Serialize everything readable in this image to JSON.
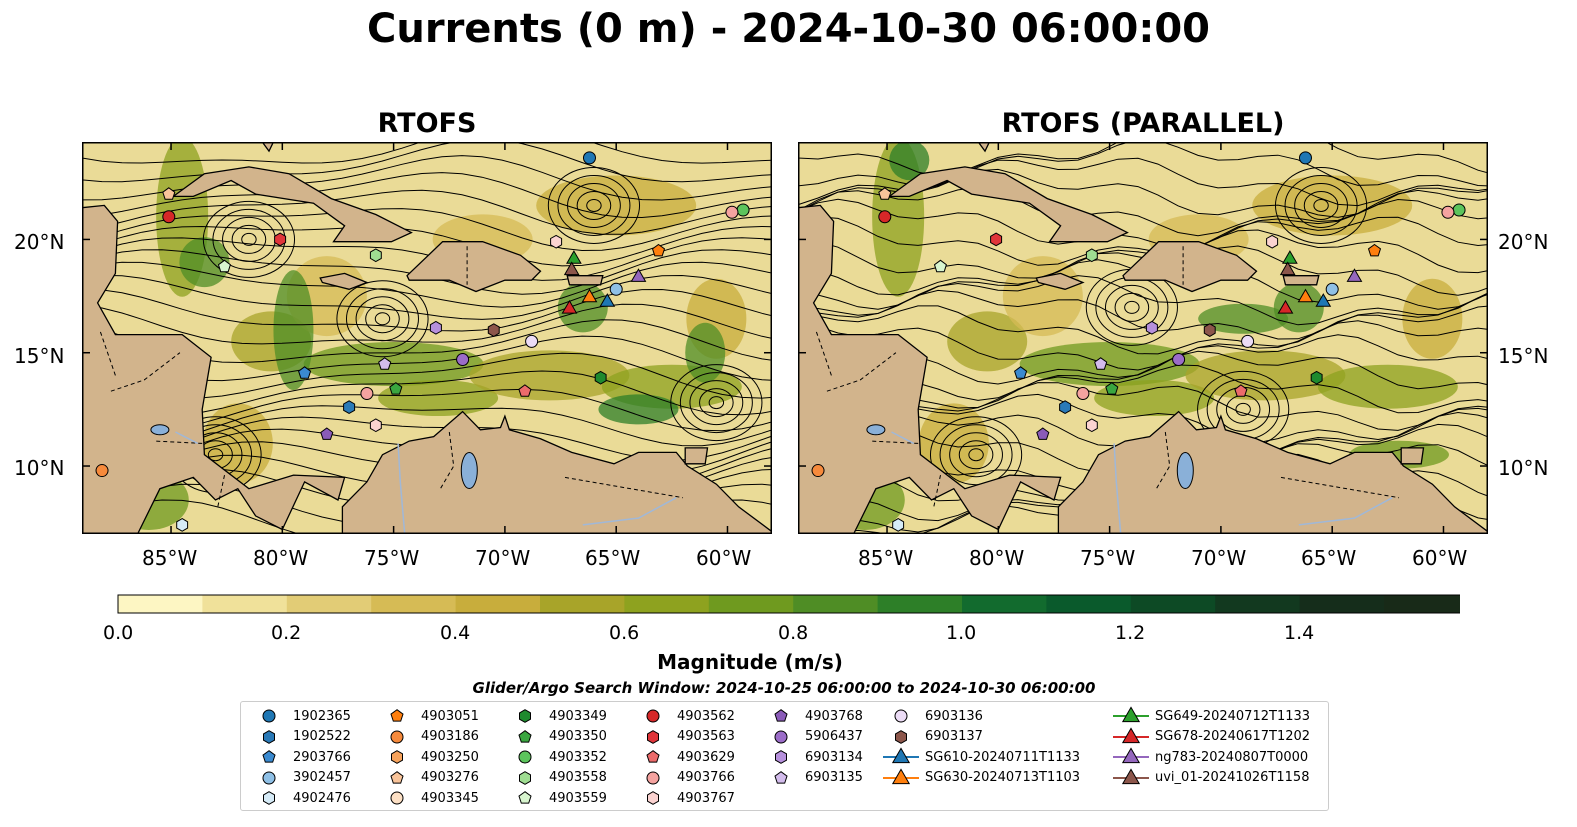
{
  "suptitle": "Currents (0 m) - 2024-10-30 06:00:00",
  "panels": [
    {
      "title": "RTOFS"
    },
    {
      "title": "RTOFS (PARALLEL)"
    }
  ],
  "map": {
    "lon_range": [
      -89,
      -58
    ],
    "lat_range": [
      7,
      24.3
    ],
    "land_color": "#d2b48c",
    "lake_color": "#8ab0d8",
    "lat_ticks": [
      "10°N",
      "15°N",
      "20°N"
    ],
    "lon_ticks": [
      "85°W",
      "80°W",
      "75°W",
      "70°W",
      "65°W",
      "60°W"
    ]
  },
  "colorbar": {
    "label": "Magnitude (m/s)",
    "ticks": [
      "0.0",
      "0.2",
      "0.4",
      "0.6",
      "0.8",
      "1.0",
      "1.2",
      "1.4"
    ],
    "colors": [
      "#fdf6c3",
      "#f0e19a",
      "#e2cc76",
      "#d6bb55",
      "#c8ad3c",
      "#a8a429",
      "#8ea21f",
      "#6f9a1f",
      "#4f8d25",
      "#2d7f28",
      "#126b2e",
      "#0a5a2c",
      "#0d4a25",
      "#12391f",
      "#152d1b",
      "#182a18"
    ]
  },
  "window_text": "Glider/Argo Search Window: 2024-10-25 06:00:00 to 2024-10-30 06:00:00",
  "legend": [
    {
      "label": "1902365",
      "marker": "circle",
      "color": "#1f77b4"
    },
    {
      "label": "1902522",
      "marker": "hexagon",
      "color": "#2a7ab8"
    },
    {
      "label": "2903766",
      "marker": "pentagon",
      "color": "#3a8ad0"
    },
    {
      "label": "3902457",
      "marker": "circle",
      "color": "#8fc0e6"
    },
    {
      "label": "4902476",
      "marker": "hexagon",
      "color": "#d6ebf7"
    },
    {
      "label": "4903051",
      "marker": "pentagon",
      "color": "#ff7f0e"
    },
    {
      "label": "4903186",
      "marker": "circle",
      "color": "#f68a3c"
    },
    {
      "label": "4903250",
      "marker": "hexagon",
      "color": "#f7a35c"
    },
    {
      "label": "4903276",
      "marker": "pentagon",
      "color": "#f9c49a"
    },
    {
      "label": "4903345",
      "marker": "circle",
      "color": "#fde0c5"
    },
    {
      "label": "4903349",
      "marker": "hexagon",
      "color": "#1e8a2e"
    },
    {
      "label": "4903350",
      "marker": "pentagon",
      "color": "#3aa640"
    },
    {
      "label": "4903352",
      "marker": "circle",
      "color": "#5cc45c"
    },
    {
      "label": "4903558",
      "marker": "hexagon",
      "color": "#9fdd92"
    },
    {
      "label": "4903559",
      "marker": "pentagon",
      "color": "#d8f5cf"
    },
    {
      "label": "4903562",
      "marker": "circle",
      "color": "#d62728"
    },
    {
      "label": "4903563",
      "marker": "hexagon",
      "color": "#e0353a"
    },
    {
      "label": "4903629",
      "marker": "pentagon",
      "color": "#ec6b6b"
    },
    {
      "label": "4903766",
      "marker": "circle",
      "color": "#f5a3a0"
    },
    {
      "label": "4903767",
      "marker": "hexagon",
      "color": "#fbd3d1"
    },
    {
      "label": "4903768",
      "marker": "pentagon",
      "color": "#8a5bb8"
    },
    {
      "label": "5906437",
      "marker": "circle",
      "color": "#9b6cc8"
    },
    {
      "label": "6903134",
      "marker": "hexagon",
      "color": "#b690dc"
    },
    {
      "label": "6903135",
      "marker": "pentagon",
      "color": "#d3bcec"
    },
    {
      "label": "6903136",
      "marker": "circle",
      "color": "#ecdcf6"
    },
    {
      "label": "6903137",
      "marker": "hexagon",
      "color": "#8c564b"
    },
    {
      "label": "SG610-20240711T1133",
      "marker": "triangle",
      "color": "#1f77b4"
    },
    {
      "label": "SG630-20240713T1103",
      "marker": "triangle",
      "color": "#ff7f0e"
    },
    {
      "label": "SG649-20240712T1133",
      "marker": "triangle",
      "color": "#2ca02c"
    },
    {
      "label": "SG678-20240617T1202",
      "marker": "triangle",
      "color": "#d62728"
    },
    {
      "label": "ng783-20240807T0000",
      "marker": "triangle",
      "color": "#9467bd"
    },
    {
      "label": "uvi_01-20241026T1158",
      "marker": "triangle",
      "color": "#8c564b"
    }
  ],
  "markers": [
    {
      "label": "1902365",
      "lon": -66.2,
      "lat": 23.6
    },
    {
      "label": "4903186",
      "lon": -88.1,
      "lat": 9.8
    },
    {
      "label": "4902476",
      "lon": -84.5,
      "lat": 7.4
    },
    {
      "label": "4903276",
      "lon": -85.1,
      "lat": 22.0
    },
    {
      "label": "4903562",
      "lon": -85.1,
      "lat": 21.0
    },
    {
      "label": "4903563",
      "lon": -80.1,
      "lat": 20.0
    },
    {
      "label": "4903559",
      "lon": -82.6,
      "lat": 18.8
    },
    {
      "label": "4903352",
      "lon": -59.3,
      "lat": 21.3
    },
    {
      "label": "4903766",
      "lon": -59.8,
      "lat": 21.2
    },
    {
      "label": "4903051",
      "lon": -63.1,
      "lat": 19.5
    },
    {
      "label": "4903767",
      "lon": -67.7,
      "lat": 19.9
    },
    {
      "label": "4903558",
      "lon": -75.8,
      "lat": 19.3
    },
    {
      "label": "3902457",
      "lon": -65.0,
      "lat": 17.8
    },
    {
      "label": "6903134",
      "lon": -73.1,
      "lat": 16.1
    },
    {
      "label": "6903137",
      "lon": -70.5,
      "lat": 16.0
    },
    {
      "label": "6903136",
      "lon": -68.8,
      "lat": 15.5
    },
    {
      "label": "5906437",
      "lon": -71.9,
      "lat": 14.7
    },
    {
      "label": "6903135",
      "lon": -75.4,
      "lat": 14.5
    },
    {
      "label": "2903766",
      "lon": -79.0,
      "lat": 14.1
    },
    {
      "label": "4903350",
      "lon": -74.9,
      "lat": 13.4
    },
    {
      "label": "4903766",
      "lon": -76.2,
      "lat": 13.2
    },
    {
      "label": "4903629",
      "lon": -69.1,
      "lat": 13.3
    },
    {
      "label": "4903349",
      "lon": -65.7,
      "lat": 13.9
    },
    {
      "label": "1902522",
      "lon": -77.0,
      "lat": 12.6
    },
    {
      "label": "4903767",
      "lon": -75.8,
      "lat": 11.8
    },
    {
      "label": "4903768",
      "lon": -78.0,
      "lat": 11.4
    },
    {
      "label": "SG649-20240712T1133",
      "lon": -66.9,
      "lat": 19.2
    },
    {
      "label": "uvi_01-20241026T1158",
      "lon": -67.0,
      "lat": 18.7
    },
    {
      "label": "ng783-20240807T0000",
      "lon": -64.0,
      "lat": 18.4
    },
    {
      "label": "SG630-20240713T1103",
      "lon": -66.2,
      "lat": 17.5
    },
    {
      "label": "SG610-20240711T1133",
      "lon": -65.4,
      "lat": 17.3
    },
    {
      "label": "SG678-20240617T1202",
      "lon": -67.1,
      "lat": 17.0
    }
  ]
}
